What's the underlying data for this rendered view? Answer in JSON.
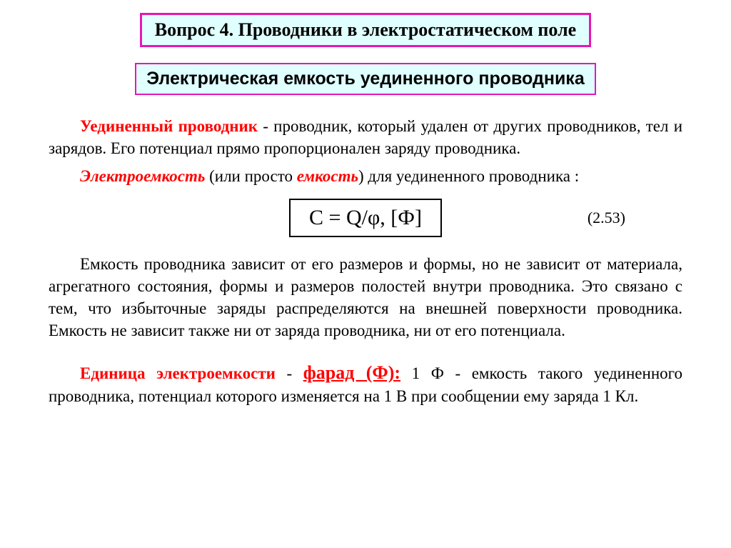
{
  "title": "Вопрос 4. Проводники в электростатическом поле",
  "subtitle": "Электрическая емкость уединенного проводника",
  "p1": {
    "term": "Уединенный проводник",
    "rest": " - проводник, который удален от других проводников, тел и зарядов. Его потенциал прямо пропорционален заряду проводника."
  },
  "p2": {
    "term1": "Электроемкость",
    "mid": " (или просто ",
    "term2": "емкость",
    "rest": ") для уединенного проводника :"
  },
  "formula": {
    "text": "C = Q/φ,   [Ф]",
    "eqnum": "(2.53)"
  },
  "p3": "Емкость проводника зависит от его размеров и формы, но не зависит от материала, агрегатного состояния, формы и размеров полостей внутри проводника. Это связано с тем, что избыточные заряды распределяются на внешней поверхности проводника. Емкость не зависит также ни от заряда проводника, ни от его потенциала.",
  "p4": {
    "term": "Единица электроемкости",
    "dash": " - ",
    "farad": "фарад (Ф):",
    "rest": " 1 Ф - емкость такого уединенного проводника, потенциал которого изменяется на 1 В при сообщении ему заряда 1 Кл."
  },
  "colors": {
    "border_magenta": "#e815b6",
    "box_bg": "#e0ffff",
    "red": "#ff0000",
    "text": "#000000",
    "page_bg": "#ffffff"
  }
}
